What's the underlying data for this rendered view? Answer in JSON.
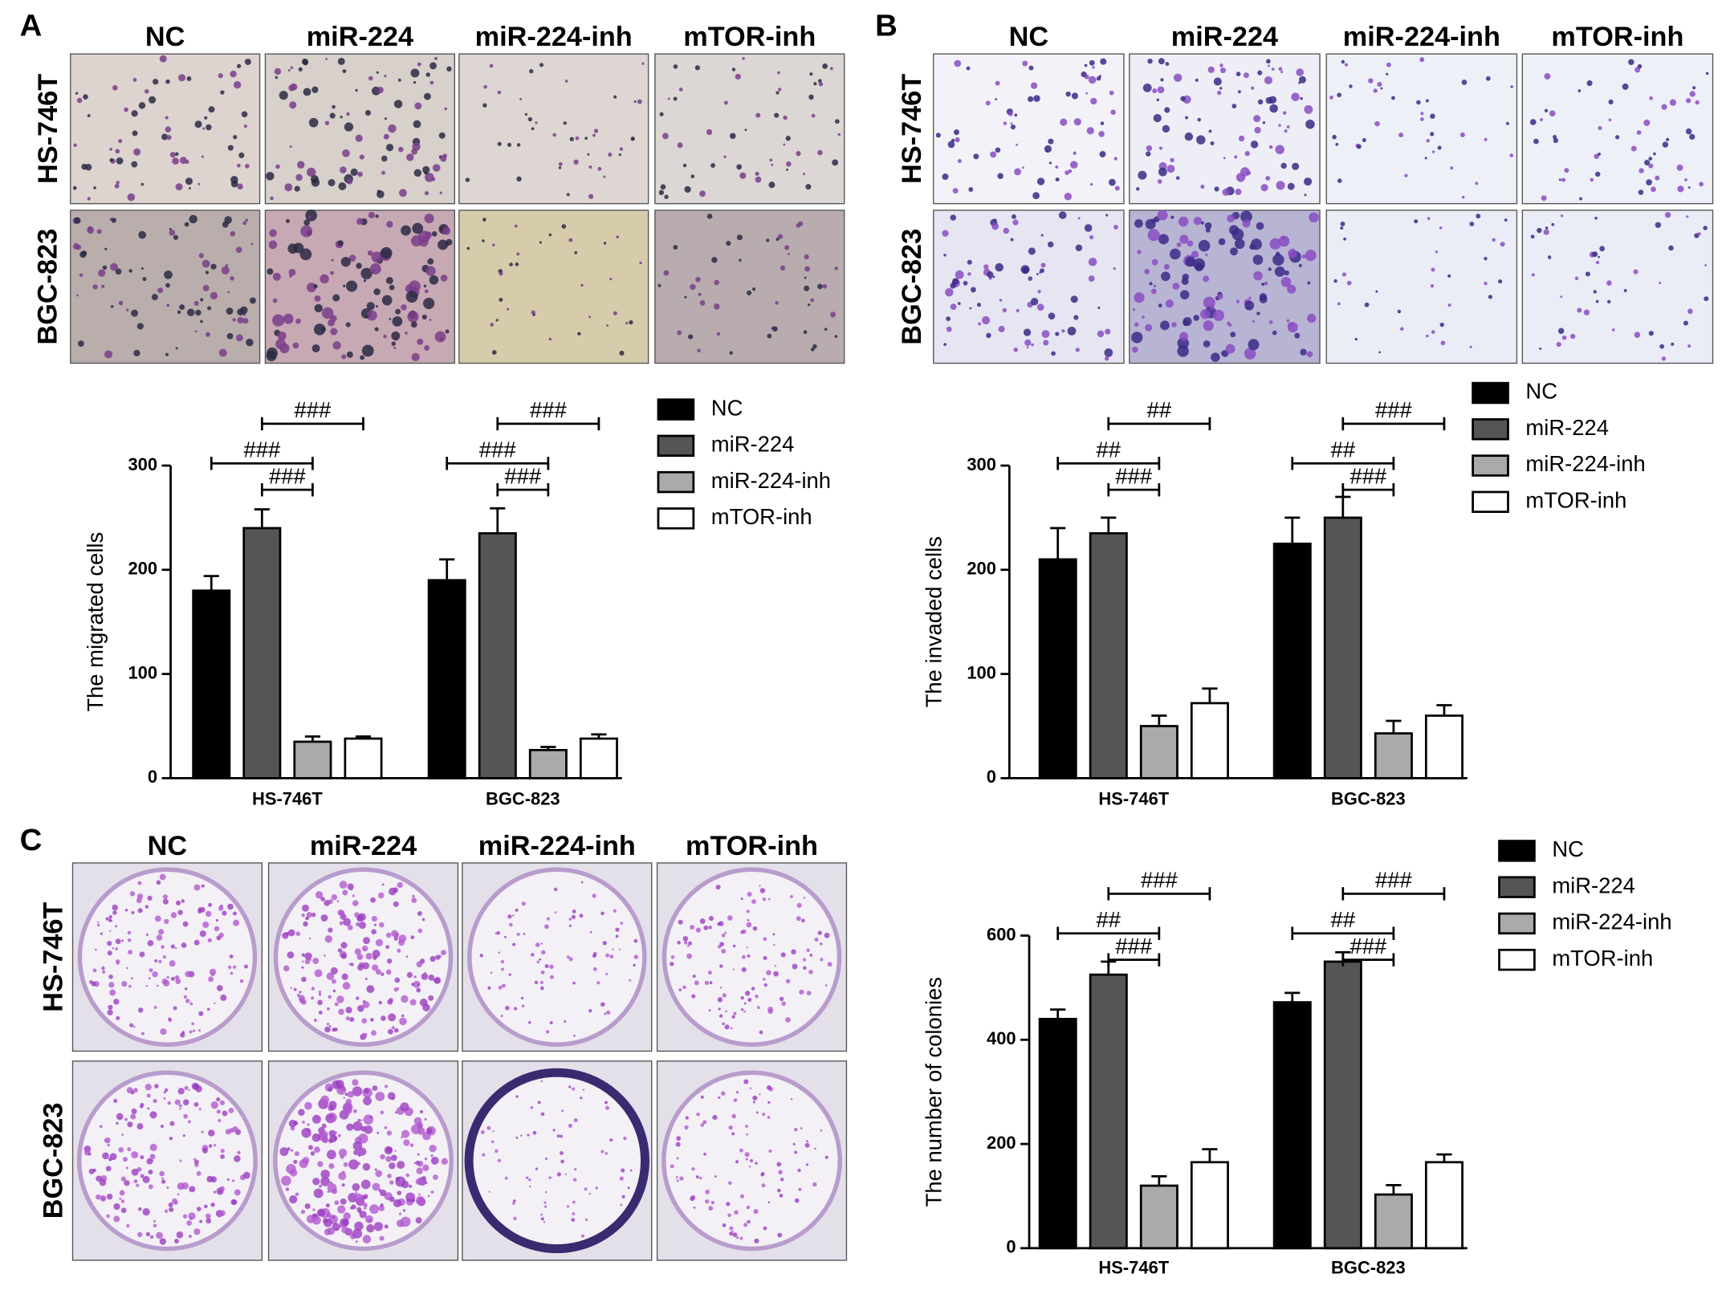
{
  "figure_panels": [
    {
      "label": "A",
      "columns": [
        "NC",
        "miR-224",
        "miR-224-inh",
        "mTOR-inh"
      ],
      "rows": [
        "HS-746T",
        "BGC-823"
      ]
    },
    {
      "label": "B",
      "columns": [
        "NC",
        "miR-224",
        "miR-224-inh",
        "mTOR-inh"
      ],
      "rows": [
        "HS-746T",
        "BGC-823"
      ]
    },
    {
      "label": "C",
      "columns": [
        "NC",
        "miR-224",
        "miR-224-inh",
        "mTOR-inh"
      ],
      "rows": [
        "HS-746T",
        "BGC-823"
      ]
    }
  ],
  "chart_data": [
    {
      "type": "bar",
      "y_label": "The migrated cells",
      "categories": [
        "HS-746T",
        "BGC-823"
      ],
      "ylim": [
        0,
        300
      ],
      "yticks": [
        0,
        100,
        200,
        300
      ],
      "series": [
        {
          "name": "NC",
          "color": "#000000",
          "values": [
            180,
            190
          ],
          "errors": [
            14,
            20
          ]
        },
        {
          "name": "miR-224",
          "color": "#555555",
          "values": [
            240,
            235
          ],
          "errors": [
            18,
            24
          ]
        },
        {
          "name": "miR-224-inh",
          "color": "#aaaaaa",
          "values": [
            35,
            27
          ],
          "errors": [
            5,
            3
          ]
        },
        {
          "name": "mTOR-inh",
          "color": "#ffffff",
          "values": [
            38,
            38
          ],
          "errors": [
            2,
            4
          ]
        }
      ],
      "annotations": [
        {
          "text": "###",
          "category": "HS-746T",
          "from": "miR-224",
          "to": "miR-224-inh"
        },
        {
          "text": "###",
          "category": "HS-746T",
          "from": "NC",
          "to": "miR-224-inh"
        },
        {
          "text": "###",
          "category": "HS-746T",
          "from": "miR-224",
          "to": "mTOR-inh"
        },
        {
          "text": "###",
          "category": "BGC-823",
          "from": "miR-224",
          "to": "miR-224-inh"
        },
        {
          "text": "###",
          "category": "BGC-823",
          "from": "NC",
          "to": "miR-224-inh"
        },
        {
          "text": "###",
          "category": "BGC-823",
          "from": "miR-224",
          "to": "mTOR-inh"
        }
      ]
    },
    {
      "type": "bar",
      "y_label": "The invaded cells",
      "categories": [
        "HS-746T",
        "BGC-823"
      ],
      "ylim": [
        0,
        300
      ],
      "yticks": [
        0,
        100,
        200,
        300
      ],
      "series": [
        {
          "name": "NC",
          "color": "#000000",
          "values": [
            210,
            225
          ],
          "errors": [
            30,
            25
          ]
        },
        {
          "name": "miR-224",
          "color": "#555555",
          "values": [
            235,
            250
          ],
          "errors": [
            15,
            20
          ]
        },
        {
          "name": "miR-224-inh",
          "color": "#aaaaaa",
          "values": [
            50,
            43
          ],
          "errors": [
            10,
            12
          ]
        },
        {
          "name": "mTOR-inh",
          "color": "#ffffff",
          "values": [
            72,
            60
          ],
          "errors": [
            14,
            10
          ]
        }
      ],
      "annotations": [
        {
          "text": "###",
          "category": "HS-746T",
          "from": "miR-224",
          "to": "miR-224-inh"
        },
        {
          "text": "##",
          "category": "HS-746T",
          "from": "NC",
          "to": "miR-224-inh"
        },
        {
          "text": "##",
          "category": "HS-746T",
          "from": "miR-224",
          "to": "mTOR-inh"
        },
        {
          "text": "###",
          "category": "BGC-823",
          "from": "miR-224",
          "to": "miR-224-inh"
        },
        {
          "text": "##",
          "category": "BGC-823",
          "from": "NC",
          "to": "miR-224-inh"
        },
        {
          "text": "###",
          "category": "BGC-823",
          "from": "miR-224",
          "to": "mTOR-inh"
        }
      ]
    },
    {
      "type": "bar",
      "y_label": "The number of colonies",
      "categories": [
        "HS-746T",
        "BGC-823"
      ],
      "ylim": [
        0,
        600
      ],
      "yticks": [
        0,
        200,
        400,
        600
      ],
      "series": [
        {
          "name": "NC",
          "color": "#000000",
          "values": [
            440,
            472
          ],
          "errors": [
            18,
            18
          ]
        },
        {
          "name": "miR-224",
          "color": "#555555",
          "values": [
            525,
            550
          ],
          "errors": [
            25,
            18
          ]
        },
        {
          "name": "miR-224-inh",
          "color": "#aaaaaa",
          "values": [
            120,
            103
          ],
          "errors": [
            18,
            18
          ]
        },
        {
          "name": "mTOR-inh",
          "color": "#ffffff",
          "values": [
            165,
            165
          ],
          "errors": [
            25,
            15
          ]
        }
      ],
      "annotations": [
        {
          "text": "###",
          "category": "HS-746T",
          "from": "miR-224",
          "to": "miR-224-inh"
        },
        {
          "text": "##",
          "category": "HS-746T",
          "from": "NC",
          "to": "miR-224-inh"
        },
        {
          "text": "###",
          "category": "HS-746T",
          "from": "miR-224",
          "to": "mTOR-inh"
        },
        {
          "text": "###",
          "category": "BGC-823",
          "from": "miR-224",
          "to": "miR-224-inh"
        },
        {
          "text": "##",
          "category": "BGC-823",
          "from": "NC",
          "to": "miR-224-inh"
        },
        {
          "text": "###",
          "category": "BGC-823",
          "from": "miR-224",
          "to": "mTOR-inh"
        }
      ]
    }
  ]
}
